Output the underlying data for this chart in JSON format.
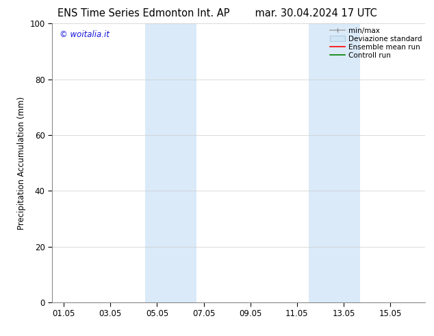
{
  "title_left": "ENS Time Series Edmonton Int. AP",
  "title_right": "mar. 30.04.2024 17 UTC",
  "ylabel": "Precipitation Accumulation (mm)",
  "ylim": [
    0,
    100
  ],
  "yticks": [
    0,
    20,
    40,
    60,
    80,
    100
  ],
  "xtick_labels": [
    "01.05",
    "03.05",
    "05.05",
    "07.05",
    "09.05",
    "11.05",
    "13.05",
    "15.05"
  ],
  "xtick_positions": [
    0,
    2,
    4,
    6,
    8,
    10,
    12,
    14
  ],
  "xlim": [
    -0.5,
    15.5
  ],
  "shaded_bands": [
    {
      "x_start": 3.5,
      "x_end": 5.7,
      "color": "#daeaf8"
    },
    {
      "x_start": 10.5,
      "x_end": 12.7,
      "color": "#daeaf8"
    }
  ],
  "watermark_text": "© woitalia.it",
  "watermark_color": "#1515dd",
  "legend_items": [
    {
      "label": "min/max",
      "color": "#aaaaaa",
      "lw": 1.2
    },
    {
      "label": "Deviazione standard",
      "color": "#d0e5f5",
      "lw": 8
    },
    {
      "label": "Ensemble mean run",
      "color": "red",
      "lw": 1.2
    },
    {
      "label": "Controll run",
      "color": "green",
      "lw": 1.2
    }
  ],
  "title_fontsize": 10.5,
  "tick_fontsize": 8.5,
  "ylabel_fontsize": 8.5,
  "watermark_fontsize": 8.5,
  "legend_fontsize": 7.5,
  "bg_color": "#ffffff"
}
